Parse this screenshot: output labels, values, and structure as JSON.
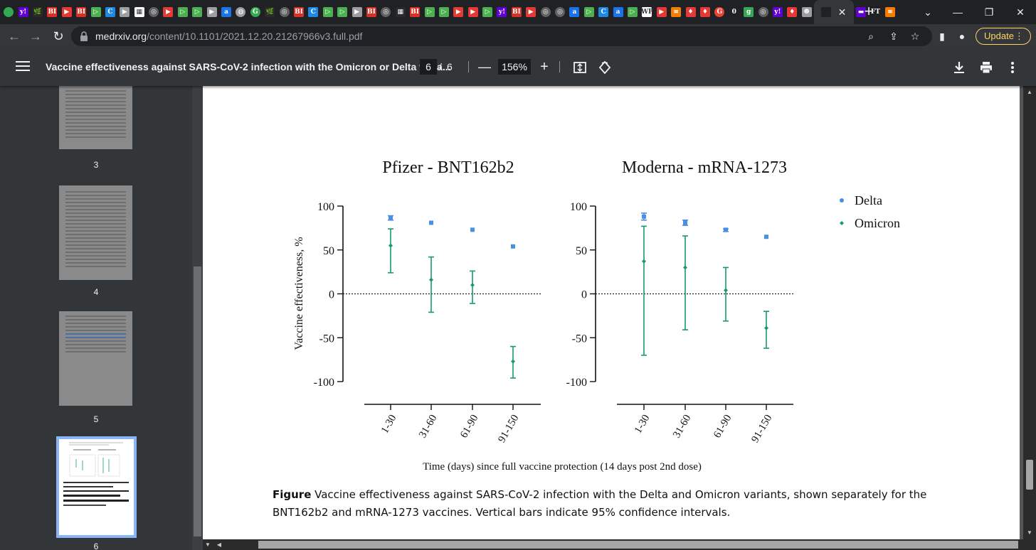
{
  "browser": {
    "active_tab_close": "✕",
    "new_tab": "+",
    "url_host": "medrxiv.org",
    "url_path": "/content/10.1101/2021.12.20.21267966v3.full.pdf",
    "update_label": "Update"
  },
  "tab_favicons": [
    {
      "label": "",
      "bg": "#34a853",
      "shape": "circle"
    },
    {
      "label": "y!",
      "bg": "#6001d2",
      "shape": "square"
    },
    {
      "label": "🌿",
      "bg": "#2a2a2a",
      "shape": "square"
    },
    {
      "label": "BI",
      "bg": "#d93025",
      "shape": "square"
    },
    {
      "label": "▶",
      "bg": "#e53935",
      "shape": "square"
    },
    {
      "label": "BI",
      "bg": "#d93025",
      "shape": "square"
    },
    {
      "label": "▷",
      "bg": "#4caf50",
      "shape": "square"
    },
    {
      "label": "C",
      "bg": "#1e88e5",
      "shape": "square"
    },
    {
      "label": "▶",
      "bg": "#9e9e9e",
      "shape": "square"
    },
    {
      "label": "▦",
      "bg": "#ffffff",
      "shape": "square"
    },
    {
      "label": "◎",
      "bg": "#616161",
      "shape": "circle"
    },
    {
      "label": "▶",
      "bg": "#e53935",
      "shape": "square"
    },
    {
      "label": "▷",
      "bg": "#4caf50",
      "shape": "square"
    },
    {
      "label": "▷",
      "bg": "#4caf50",
      "shape": "square"
    },
    {
      "label": "▶",
      "bg": "#9e9e9e",
      "shape": "square"
    },
    {
      "label": "a",
      "bg": "#1a73e8",
      "shape": "square"
    },
    {
      "label": "◍",
      "bg": "#9e9e9e",
      "shape": "circle"
    },
    {
      "label": "G",
      "bg": "#34a853",
      "shape": "circle"
    },
    {
      "label": "🌿",
      "bg": "#2a2a2a",
      "shape": "square"
    },
    {
      "label": "◎",
      "bg": "#616161",
      "shape": "circle"
    },
    {
      "label": "BI",
      "bg": "#d93025",
      "shape": "square"
    },
    {
      "label": "C",
      "bg": "#1e88e5",
      "shape": "square"
    },
    {
      "label": "▷",
      "bg": "#4caf50",
      "shape": "square"
    },
    {
      "label": "▷",
      "bg": "#4caf50",
      "shape": "square"
    },
    {
      "label": "▶",
      "bg": "#9e9e9e",
      "shape": "square"
    },
    {
      "label": "BI",
      "bg": "#d93025",
      "shape": "square"
    },
    {
      "label": "◎",
      "bg": "#616161",
      "shape": "circle"
    },
    {
      "label": "▦",
      "bg": "#2a2a2a",
      "shape": "square"
    },
    {
      "label": "BI",
      "bg": "#d93025",
      "shape": "square"
    },
    {
      "label": "▷",
      "bg": "#4caf50",
      "shape": "square"
    },
    {
      "label": "▷",
      "bg": "#4caf50",
      "shape": "square"
    },
    {
      "label": "▶",
      "bg": "#e53935",
      "shape": "square"
    },
    {
      "label": "▶",
      "bg": "#e53935",
      "shape": "square"
    },
    {
      "label": "▷",
      "bg": "#4caf50",
      "shape": "square"
    },
    {
      "label": "y!",
      "bg": "#6001d2",
      "shape": "square"
    },
    {
      "label": "BI",
      "bg": "#d93025",
      "shape": "square"
    },
    {
      "label": "▶",
      "bg": "#e53935",
      "shape": "square"
    },
    {
      "label": "◎",
      "bg": "#616161",
      "shape": "circle"
    },
    {
      "label": "◎",
      "bg": "#616161",
      "shape": "circle"
    },
    {
      "label": "a",
      "bg": "#1a73e8",
      "shape": "square"
    },
    {
      "label": "▷",
      "bg": "#4caf50",
      "shape": "square"
    },
    {
      "label": "C",
      "bg": "#1e88e5",
      "shape": "square"
    },
    {
      "label": "a",
      "bg": "#1a73e8",
      "shape": "square"
    },
    {
      "label": "▷",
      "bg": "#4caf50",
      "shape": "square"
    },
    {
      "label": "WP",
      "bg": "#ffffff",
      "shape": "square"
    },
    {
      "label": "▶",
      "bg": "#e53935",
      "shape": "square"
    },
    {
      "label": "≡",
      "bg": "#f57c00",
      "shape": "square"
    },
    {
      "label": "♦",
      "bg": "#e53935",
      "shape": "square"
    },
    {
      "label": "♦",
      "bg": "#e53935",
      "shape": "square"
    },
    {
      "label": "G",
      "bg": "#ea4335",
      "shape": "circle"
    },
    {
      "label": "0",
      "bg": "#202124",
      "shape": "square"
    },
    {
      "label": "g",
      "bg": "#34a853",
      "shape": "square"
    },
    {
      "label": "◎",
      "bg": "#616161",
      "shape": "circle"
    },
    {
      "label": "y!",
      "bg": "#6001d2",
      "shape": "square"
    },
    {
      "label": "♦",
      "bg": "#e53935",
      "shape": "square"
    },
    {
      "label": "☻",
      "bg": "#9e9e9e",
      "shape": "square"
    },
    {
      "label": "▬",
      "bg": "#6001d2",
      "shape": "square"
    },
    {
      "label": "FT",
      "bg": "#202124",
      "shape": "square"
    }
  ],
  "pdf": {
    "title": "Vaccine effectiveness against SARS-CoV-2 infection with the Omicron or Delta varia...",
    "page_current": "6",
    "page_sep": "/",
    "page_total": "6",
    "zoom": "156%",
    "zoom_out": "—",
    "zoom_in": "+"
  },
  "thumbnails": [
    {
      "page": "3"
    },
    {
      "page": "4"
    },
    {
      "page": "5"
    },
    {
      "page": "6"
    }
  ],
  "figure": {
    "caption_bold": "Figure",
    "caption_text": " Vaccine effectiveness against SARS-CoV-2 infection with the Delta and Omicron variants, shown separately for the BNT162b2 and mRNA-1273 vaccines. Vertical bars indicate 95% confidence intervals."
  },
  "chart_data": [
    {
      "type": "scatter",
      "title": "Pfizer - BNT162b2",
      "xlabel": "Time (days) since full vaccine protection (14 days post 2nd dose)",
      "ylabel": "Vaccine effectiveness, %",
      "categories": [
        "1-30",
        "31-60",
        "61-90",
        "91-150"
      ],
      "y_ticks": [
        "100",
        "50",
        "0",
        "-50",
        "-100"
      ],
      "ylim": [
        -100,
        100
      ],
      "reference_line": 0,
      "series": [
        {
          "name": "Delta",
          "color": "#4a90e2",
          "values": [
            87,
            81,
            73,
            54
          ],
          "lower": [
            84,
            80,
            72,
            53
          ],
          "upper": [
            89,
            82,
            74,
            55
          ]
        },
        {
          "name": "Omicron",
          "color": "#1a9873",
          "values": [
            55,
            16,
            10,
            -77
          ],
          "lower": [
            24,
            -21,
            -11,
            -96
          ],
          "upper": [
            74,
            42,
            26,
            -60
          ]
        }
      ]
    },
    {
      "type": "scatter",
      "title": "Moderna - mRNA-1273",
      "categories": [
        "1-30",
        "31-60",
        "61-90",
        "91-150"
      ],
      "y_ticks": [
        "100",
        "50",
        "0",
        "-50",
        "-100"
      ],
      "ylim": [
        -100,
        100
      ],
      "reference_line": 0,
      "legend_position": "top-right",
      "series": [
        {
          "name": "Delta",
          "color": "#4a90e2",
          "values": [
            88,
            81,
            73,
            65
          ],
          "lower": [
            84,
            78,
            71,
            64
          ],
          "upper": [
            92,
            84,
            74,
            66
          ]
        },
        {
          "name": "Omicron",
          "color": "#1a9873",
          "values": [
            37,
            30,
            4,
            -39
          ],
          "lower": [
            -70,
            -41,
            -31,
            -62
          ],
          "upper": [
            77,
            66,
            30,
            -20
          ]
        }
      ]
    }
  ]
}
